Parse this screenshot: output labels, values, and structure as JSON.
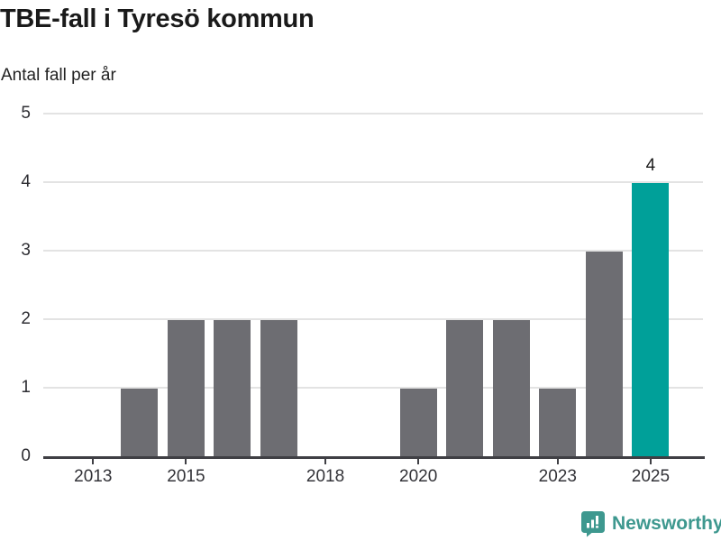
{
  "header": {
    "title": "TBE-fall i Tyresö kommun",
    "subtitle": "Antal fall per år"
  },
  "chart_data": {
    "type": "bar",
    "title": "TBE-fall i Tyresö kommun",
    "subtitle": "Antal fall per år",
    "ylabel": "Antal fall per år",
    "xlabel": "",
    "categories": [
      "2013",
      "2014",
      "2015",
      "2016",
      "2017",
      "2018",
      "2019",
      "2020",
      "2021",
      "2022",
      "2023",
      "2024",
      "2025"
    ],
    "values": [
      0,
      1,
      2,
      2,
      2,
      0,
      0,
      1,
      2,
      2,
      1,
      3,
      4
    ],
    "ylim": [
      0,
      5
    ],
    "yticks": [
      0,
      1,
      2,
      3,
      4,
      5
    ],
    "xtick_labels": [
      "2013",
      "2015",
      "2018",
      "2020",
      "2023",
      "2025"
    ],
    "grid": true,
    "legend": "none",
    "bar_color": "#6d6d72",
    "highlight": {
      "category": "2025",
      "color": "#00a099",
      "value_label": "4"
    }
  },
  "branding": {
    "logo_text": "Newsworthy",
    "logo_color": "#3e988f",
    "logo_icon": "bar-chart-speech-bubble-icon"
  }
}
